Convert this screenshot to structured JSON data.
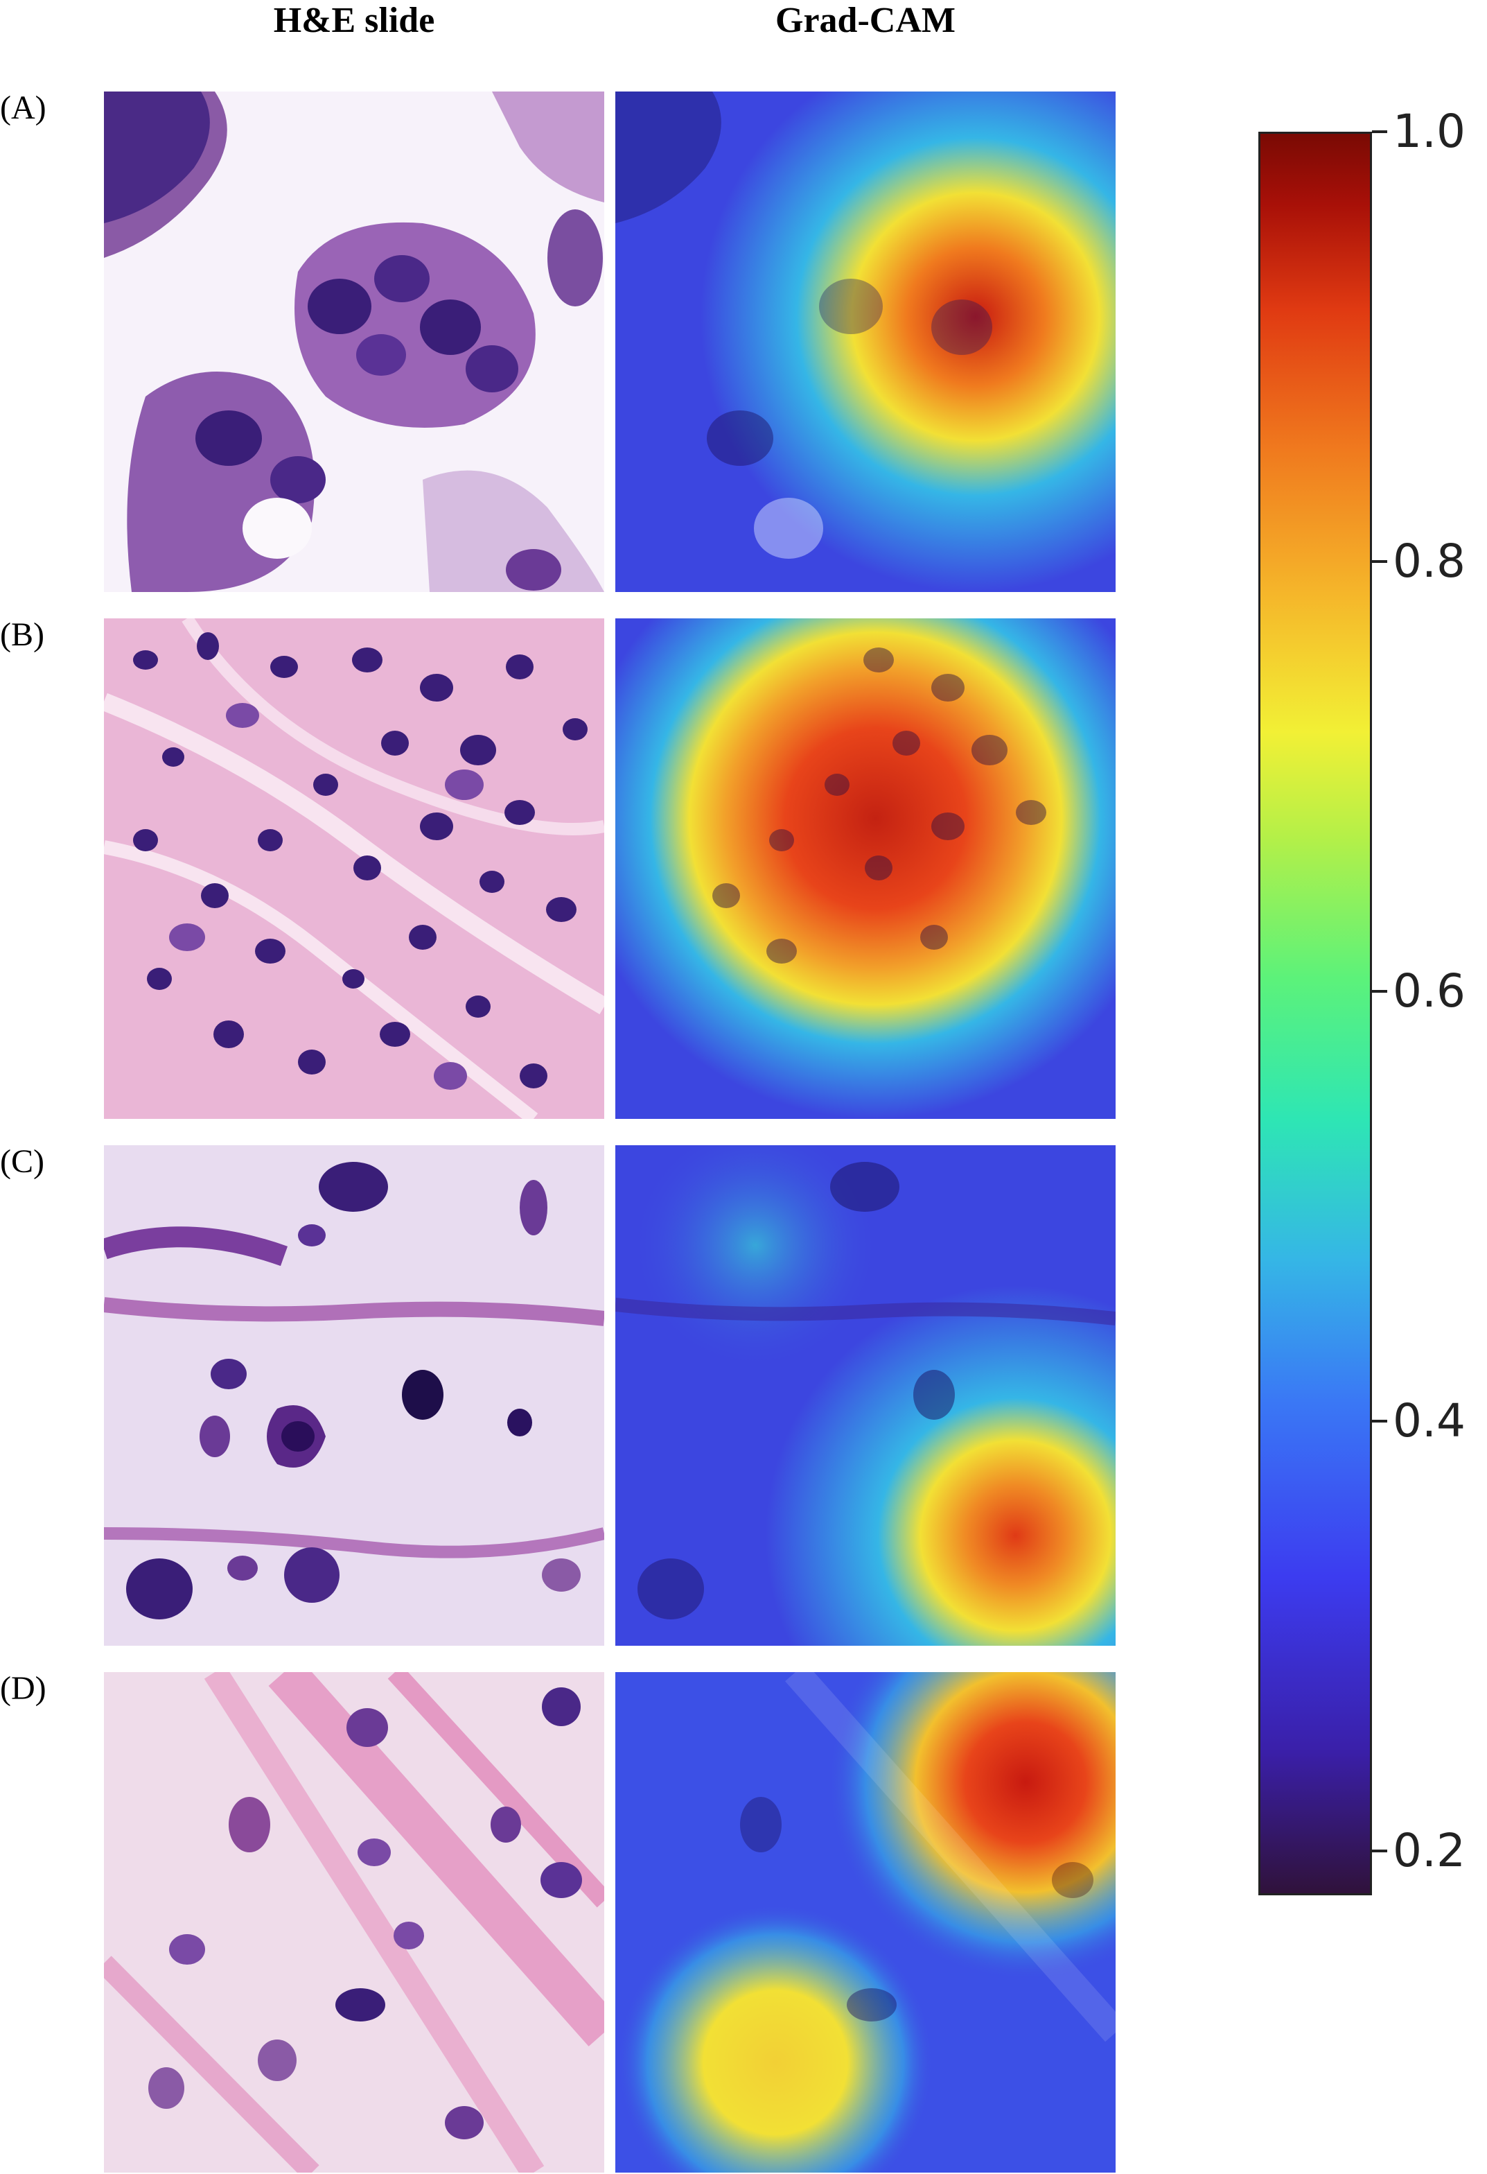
{
  "columns": {
    "he": "H&E slide",
    "gradcam": "Grad-CAM"
  },
  "rows": [
    {
      "label": "(A)"
    },
    {
      "label": "(B)"
    },
    {
      "label": "(C)"
    },
    {
      "label": "(D)"
    }
  ],
  "colorbar": {
    "min": 0.05,
    "max": 1.0,
    "ticks": [
      "1.0",
      "0.8",
      "0.6",
      "0.4",
      "0.2"
    ],
    "colors": [
      "#30123b",
      "#3c3cf0",
      "#35b6e6",
      "#5cf27a",
      "#f2f035",
      "#f07a1e",
      "#a81008",
      "#7a0a04"
    ]
  },
  "stain_colors": {
    "nucleus": "#3a1e78",
    "cytoplasm": "#b06ab0",
    "stroma": "#e8a6d0",
    "background": "#f7f2fa"
  }
}
